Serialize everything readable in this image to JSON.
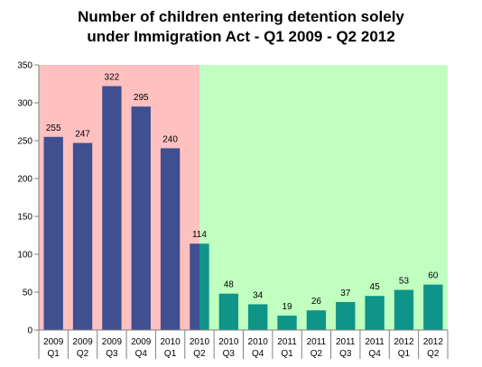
{
  "chart_data": {
    "type": "bar",
    "title": "Number of children entering detention solely under Immigration Act - Q1 2009 - Q2 2012",
    "title_lines": [
      "Number of children entering detention solely",
      "under Immigration Act - Q1 2009 - Q2 2012"
    ],
    "xlabel": "",
    "ylabel": "",
    "categories": [
      [
        "2009",
        "Q1"
      ],
      [
        "2009",
        "Q2"
      ],
      [
        "2009",
        "Q3"
      ],
      [
        "2009",
        "Q4"
      ],
      [
        "2010",
        "Q1"
      ],
      [
        "2010",
        "Q2"
      ],
      [
        "2010",
        "Q3"
      ],
      [
        "2010",
        "Q4"
      ],
      [
        "2011",
        "Q1"
      ],
      [
        "2011",
        "Q2"
      ],
      [
        "2011",
        "Q3"
      ],
      [
        "2011",
        "Q4"
      ],
      [
        "2012",
        "Q1"
      ],
      [
        "2012",
        "Q2"
      ]
    ],
    "values": [
      255,
      247,
      322,
      295,
      240,
      114,
      48,
      34,
      19,
      26,
      37,
      45,
      53,
      60
    ],
    "ylim": [
      0,
      350
    ],
    "yticks": [
      0,
      50,
      100,
      150,
      200,
      250,
      300,
      350
    ],
    "grid": false,
    "legend": "none",
    "colors": {
      "bar_before": "#3f4f8f",
      "bar_after": "#0e9488",
      "bg_before": "#ffc0c0",
      "bg_after": "#c0ffc0",
      "axis": "#808080"
    },
    "regions": [
      {
        "from_index": 0,
        "to_index": 4,
        "color": "#ffc0c0"
      },
      {
        "from_index": 5,
        "to_index": 13,
        "color": "#c0ffc0"
      }
    ],
    "bar_colors": [
      "#3f4f8f",
      "#3f4f8f",
      "#3f4f8f",
      "#3f4f8f",
      "#3f4f8f",
      "split",
      "#0e9488",
      "#0e9488",
      "#0e9488",
      "#0e9488",
      "#0e9488",
      "#0e9488",
      "#0e9488",
      "#0e9488"
    ]
  }
}
